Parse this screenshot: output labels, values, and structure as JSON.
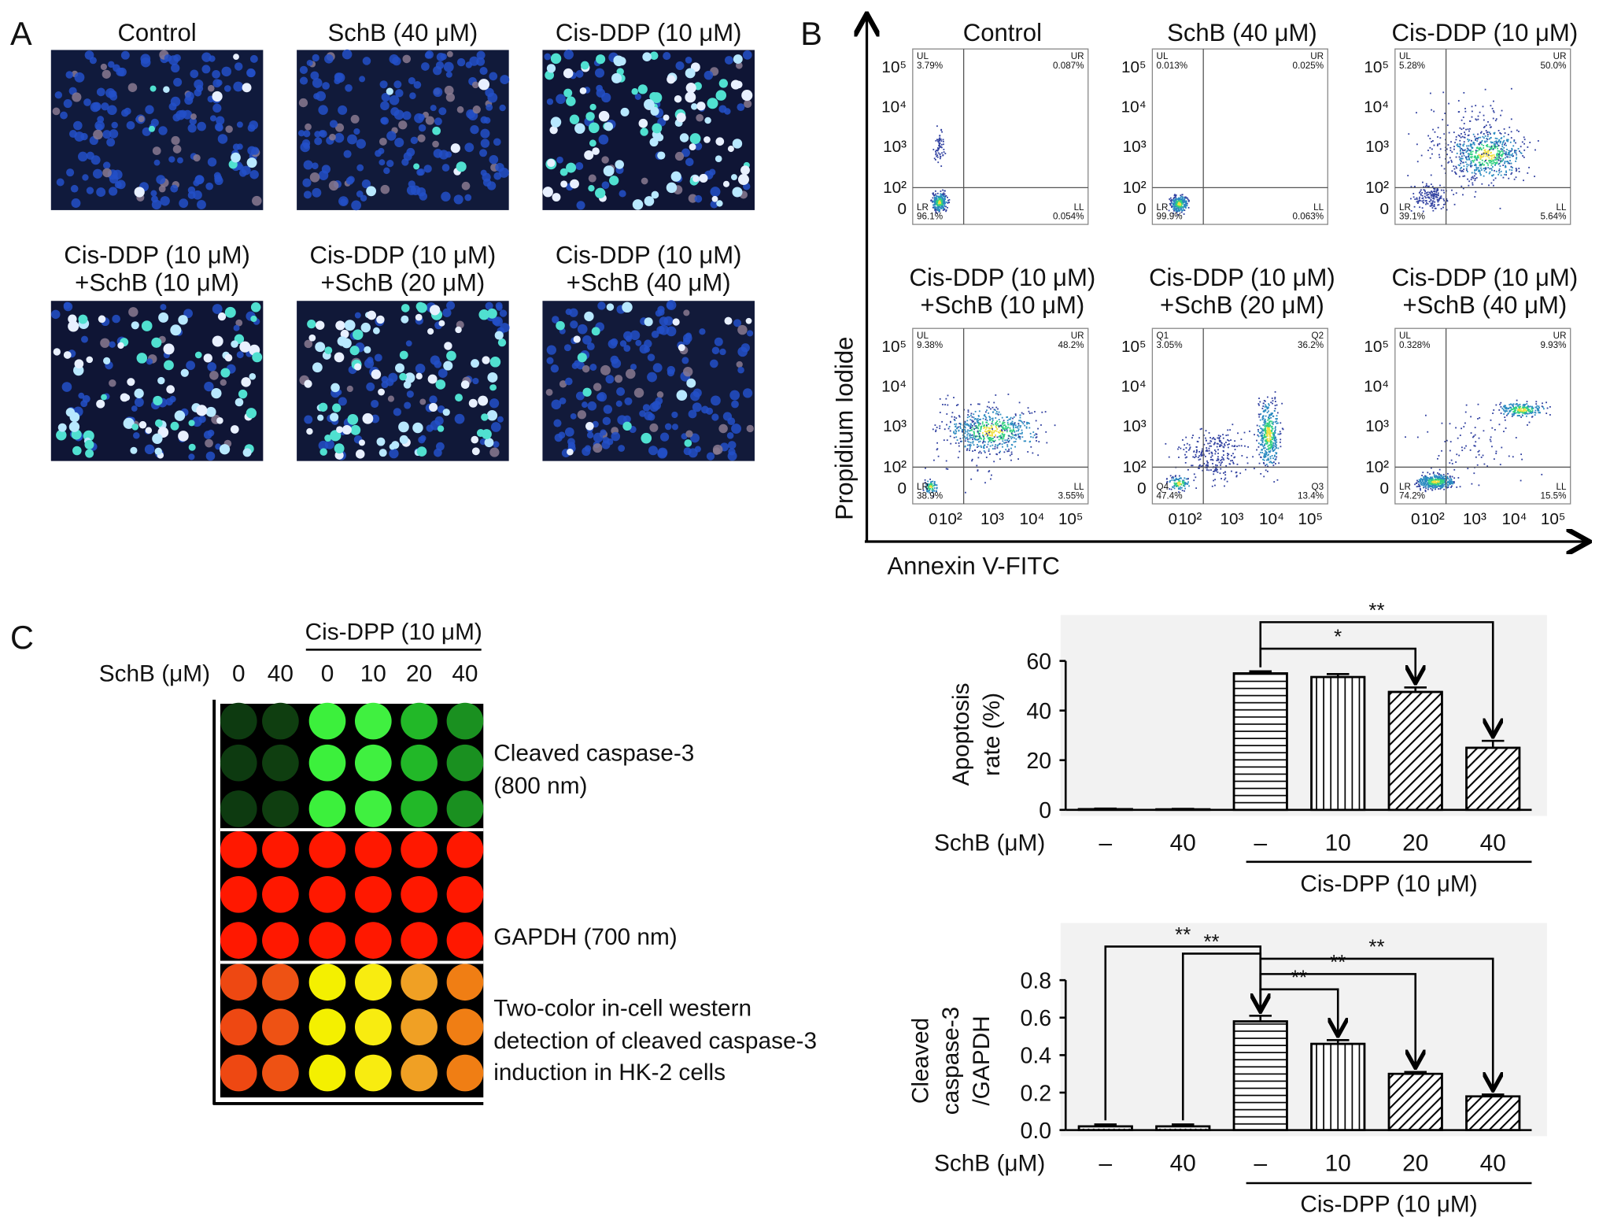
{
  "panel_labels": [
    "A",
    "B",
    "C"
  ],
  "panel_a": {
    "images": [
      {
        "lines": [
          "Control"
        ]
      },
      {
        "lines": [
          "SchB (40 μM)"
        ]
      },
      {
        "lines": [
          "Cis-DDP (10 μM)"
        ]
      },
      {
        "lines": [
          "Cis-DDP (10 μM)",
          "+SchB (10 μM)"
        ]
      },
      {
        "lines": [
          "Cis-DDP (10 μM)",
          "+SchB (20 μM)"
        ]
      },
      {
        "lines": [
          "Cis-DDP (10 μM)",
          "+SchB (40 μM)"
        ]
      }
    ]
  },
  "panel_b": {
    "y_label": "Propidium Iodide",
    "x_label": "Annexin V-FITC",
    "y_ticks": [
      "10⁵",
      "10⁴",
      "10³",
      "10²",
      "0"
    ],
    "x_ticks": [
      "0",
      "10²",
      "10³",
      "10⁴",
      "10⁵"
    ],
    "plots": [
      {
        "lines": [
          "Control"
        ],
        "quadrants": [
          {
            "name": "UL",
            "value": "3.79%"
          },
          {
            "name": "UR",
            "value": "0.087%"
          },
          {
            "name": "LR",
            "value": "96.1%"
          },
          {
            "name": "LL",
            "value": "0.054%"
          }
        ]
      },
      {
        "lines": [
          "SchB (40 μM)"
        ],
        "quadrants": [
          {
            "name": "UL",
            "value": "0.013%"
          },
          {
            "name": "UR",
            "value": "0.025%"
          },
          {
            "name": "LR",
            "value": "99.9%"
          },
          {
            "name": "LL",
            "value": "0.063%"
          }
        ]
      },
      {
        "lines": [
          "Cis-DDP (10 μM)"
        ],
        "quadrants": [
          {
            "name": "UL",
            "value": "5.28%"
          },
          {
            "name": "UR",
            "value": "50.0%"
          },
          {
            "name": "LR",
            "value": "39.1%"
          },
          {
            "name": "LL",
            "value": "5.64%"
          }
        ]
      },
      {
        "lines": [
          "Cis-DDP (10 μM)",
          "+SchB (10 μM)"
        ],
        "quadrants": [
          {
            "name": "UL",
            "value": "9.38%"
          },
          {
            "name": "UR",
            "value": "48.2%"
          },
          {
            "name": "LR",
            "value": "38.9%"
          },
          {
            "name": "LL",
            "value": "3.55%"
          }
        ]
      },
      {
        "lines": [
          "Cis-DDP (10 μM)",
          "+SchB (20 μM)"
        ],
        "quadrants": [
          {
            "name": "Q1",
            "value": "3.05%"
          },
          {
            "name": "Q2",
            "value": "36.2%"
          },
          {
            "name": "Q4",
            "value": "47.4%"
          },
          {
            "name": "Q3",
            "value": "13.4%"
          }
        ]
      },
      {
        "lines": [
          "Cis-DDP (10 μM)",
          "+SchB (40 μM)"
        ],
        "quadrants": [
          {
            "name": "UL",
            "value": "0.328%"
          },
          {
            "name": "UR",
            "value": "9.93%"
          },
          {
            "name": "LR",
            "value": "74.2%"
          },
          {
            "name": "LL",
            "value": "15.5%"
          }
        ]
      }
    ]
  },
  "panel_c_blot": {
    "group_label": "Cis-DPP (10 μM)",
    "row_label": "SchB (μM)",
    "columns": [
      "0",
      "40",
      "0",
      "10",
      "20",
      "40"
    ],
    "labels": [
      {
        "lines": [
          "Cleaved caspase-3",
          "(800 nm)"
        ]
      },
      {
        "lines": [
          "GAPDH (700 nm)"
        ]
      },
      {
        "lines": [
          "Two-color in-cell western",
          "detection of cleaved caspase-3",
          "induction in HK-2 cells"
        ]
      }
    ]
  },
  "chart_data": [
    {
      "type": "bar",
      "y_label": [
        "Apoptosis",
        "rate (%)"
      ],
      "category_title": "SchB (μM)",
      "categories": [
        "–",
        "40",
        "–",
        "10",
        "20",
        "40"
      ],
      "values": [
        0.3,
        0.2,
        55,
        53.5,
        47.5,
        25
      ],
      "errors": [
        0.2,
        0.2,
        0.8,
        1.2,
        1.8,
        2.8
      ],
      "hatch": [
        "dots",
        "dots",
        "horizontal",
        "vertical",
        "diagonal",
        "diagonal"
      ],
      "color": "#000000",
      "ylim": [
        0,
        60
      ],
      "yticks": [
        0,
        20,
        40,
        60
      ],
      "group": {
        "label": "Cis-DPP (10 μM)",
        "from": 2,
        "to": 5
      },
      "significance": [
        {
          "from": 2,
          "to": 4,
          "label": "*"
        },
        {
          "from": 2,
          "to": 5,
          "label": "**"
        }
      ]
    },
    {
      "type": "bar",
      "y_label": [
        "Cleaved",
        "caspase-3",
        "/GAPDH"
      ],
      "category_title": "SchB (μM)",
      "categories": [
        "–",
        "40",
        "–",
        "10",
        "20",
        "40"
      ],
      "values": [
        0.02,
        0.02,
        0.58,
        0.46,
        0.3,
        0.18
      ],
      "errors": [
        0.01,
        0.01,
        0.03,
        0.02,
        0.01,
        0.01
      ],
      "hatch": [
        "dots",
        "dots",
        "horizontal",
        "vertical",
        "diagonal",
        "diagonal"
      ],
      "color": "#000000",
      "ylim": [
        0,
        0.8
      ],
      "yticks": [
        {
          "value": 0,
          "label": "0.0"
        },
        0.2,
        0.4,
        0.6,
        0.8
      ],
      "group": {
        "label": "Cis-DPP (10 μM)",
        "from": 2,
        "to": 5
      },
      "significance": [
        {
          "from": 0,
          "to": 2,
          "label": "**"
        },
        {
          "from": 1,
          "to": 2,
          "label": "**"
        },
        {
          "from": 2,
          "to": 3,
          "label": "**"
        },
        {
          "from": 2,
          "to": 4,
          "label": "**"
        },
        {
          "from": 2,
          "to": 5,
          "label": "**"
        }
      ]
    }
  ]
}
